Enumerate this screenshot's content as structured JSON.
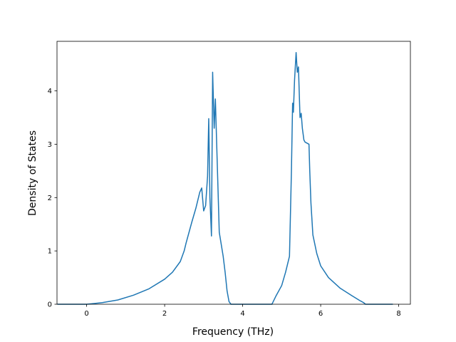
{
  "chart_data": {
    "type": "line",
    "title": "",
    "xlabel": "Frequency (THz)",
    "ylabel": "Density of States",
    "xlim": [
      -0.76,
      8.3
    ],
    "ylim": [
      0,
      4.93
    ],
    "xticks": [
      0,
      2,
      4,
      6,
      8
    ],
    "yticks": [
      0,
      1,
      2,
      3,
      4
    ],
    "xtick_labels": [
      "0",
      "2",
      "4",
      "6",
      "8"
    ],
    "ytick_labels": [
      "0",
      "1",
      "2",
      "3",
      "4"
    ],
    "grid": false,
    "series": [
      {
        "color": "#1f77b4",
        "x": [
          -0.75,
          -0.2,
          0.0,
          0.4,
          0.8,
          1.2,
          1.6,
          2.0,
          2.2,
          2.4,
          2.5,
          2.55,
          2.7,
          2.8,
          2.9,
          2.95,
          3.0,
          3.05,
          3.1,
          3.13,
          3.16,
          3.2,
          3.23,
          3.27,
          3.3,
          3.35,
          3.4,
          3.5,
          3.55,
          3.6,
          3.65,
          3.7,
          3.75,
          4.0,
          4.5,
          4.75,
          4.85,
          5.0,
          5.1,
          5.2,
          5.25,
          5.28,
          5.3,
          5.33,
          5.37,
          5.4,
          5.43,
          5.47,
          5.5,
          5.53,
          5.57,
          5.6,
          5.7,
          5.72,
          5.75,
          5.8,
          5.9,
          6.0,
          6.2,
          6.5,
          6.8,
          7.0,
          7.1,
          7.15,
          7.2,
          7.5,
          7.85
        ],
        "y": [
          0.0,
          0.0,
          0.0,
          0.03,
          0.08,
          0.17,
          0.29,
          0.47,
          0.6,
          0.8,
          1.0,
          1.15,
          1.55,
          1.8,
          2.1,
          2.18,
          1.75,
          1.85,
          2.4,
          3.48,
          2.0,
          1.28,
          4.35,
          3.3,
          3.85,
          2.6,
          1.35,
          0.9,
          0.6,
          0.25,
          0.05,
          0.0,
          0.0,
          0.0,
          0.0,
          0.0,
          0.15,
          0.35,
          0.6,
          0.9,
          2.5,
          3.77,
          3.6,
          4.2,
          4.72,
          4.35,
          4.45,
          3.5,
          3.58,
          3.3,
          3.08,
          3.04,
          3.0,
          2.5,
          1.9,
          1.3,
          0.95,
          0.72,
          0.5,
          0.3,
          0.16,
          0.07,
          0.03,
          0.0,
          0.0,
          0.0,
          0.0
        ]
      }
    ]
  }
}
